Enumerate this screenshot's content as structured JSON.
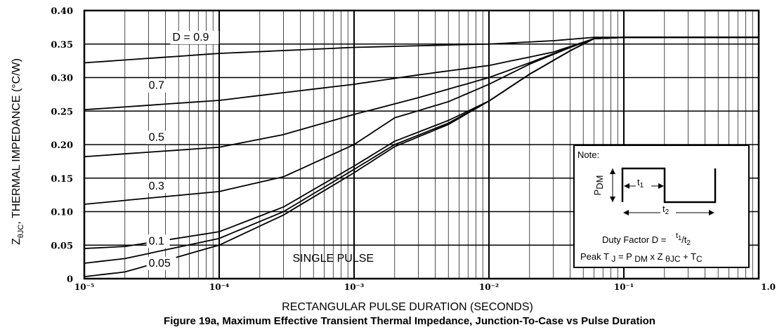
{
  "chart_data": {
    "type": "line",
    "caption": "Figure 19a, Maximum Effective Transient Thermal Impedance, Junction-To-Case vs Pulse Duration",
    "xlabel": "RECTANGULAR PULSE DURATION (SECONDS)",
    "ylabel": {
      "main": "Z",
      "sub": "θJC",
      "rest": ", THERMAL IMPEDANCE (°C/W)"
    },
    "x_scale": "log",
    "xlim": [
      1e-05,
      1.0
    ],
    "ylim": [
      0,
      0.4
    ],
    "grid": true,
    "x_ticks": [
      {
        "value": 1e-05,
        "label": "10⁻⁵"
      },
      {
        "value": 0.0001,
        "label": "10⁻⁴"
      },
      {
        "value": 0.001,
        "label": "10⁻³"
      },
      {
        "value": 0.01,
        "label": "10⁻²"
      },
      {
        "value": 0.1,
        "label": "10⁻¹"
      },
      {
        "value": 1.0,
        "label": "1.0"
      }
    ],
    "y_ticks": [
      {
        "value": 0.4,
        "label": "0.40"
      },
      {
        "value": 0.35,
        "label": "0.35"
      },
      {
        "value": 0.3,
        "label": "0.30"
      },
      {
        "value": 0.25,
        "label": "0.25"
      },
      {
        "value": 0.2,
        "label": "0.20"
      },
      {
        "value": 0.15,
        "label": "0.15"
      },
      {
        "value": 0.1,
        "label": "0.10"
      },
      {
        "value": 0.05,
        "label": "0.05"
      },
      {
        "value": 0,
        "label": "0"
      }
    ],
    "series": [
      {
        "name": "D = 0.9",
        "label_at": [
          4.5e-05,
          0.355
        ],
        "x": [
          1e-05,
          0.0001,
          0.001,
          0.01,
          0.03,
          0.06,
          0.1,
          1.0
        ],
        "y": [
          0.322,
          0.336,
          0.345,
          0.35,
          0.355,
          0.36,
          0.36,
          0.36
        ]
      },
      {
        "name": "0.7",
        "label_at": [
          3e-05,
          0.283
        ],
        "x": [
          1e-05,
          0.0001,
          0.001,
          0.003,
          0.01,
          0.03,
          0.06,
          0.1,
          1.0
        ],
        "y": [
          0.252,
          0.266,
          0.29,
          0.304,
          0.318,
          0.338,
          0.358,
          0.36,
          0.36
        ]
      },
      {
        "name": "0.5",
        "label_at": [
          3e-05,
          0.206
        ],
        "x": [
          1e-05,
          0.0001,
          0.0003,
          0.001,
          0.003,
          0.01,
          0.02,
          0.04,
          0.06,
          0.1,
          1.0
        ],
        "y": [
          0.182,
          0.196,
          0.215,
          0.245,
          0.27,
          0.3,
          0.322,
          0.345,
          0.358,
          0.36,
          0.36
        ]
      },
      {
        "name": "0.3",
        "label_at": [
          3e-05,
          0.133
        ],
        "x": [
          1e-05,
          0.0001,
          0.0003,
          0.001,
          0.002,
          0.005,
          0.01,
          0.02,
          0.04,
          0.06,
          0.1,
          1.0
        ],
        "y": [
          0.111,
          0.13,
          0.152,
          0.2,
          0.24,
          0.264,
          0.29,
          0.32,
          0.345,
          0.358,
          0.36,
          0.36
        ]
      },
      {
        "name": "0.1",
        "label_at": [
          3e-05,
          0.051
        ],
        "x": [
          1e-05,
          2e-05,
          0.0001,
          0.0003,
          0.001,
          0.002,
          0.005,
          0.01,
          0.02,
          0.04,
          0.06,
          0.1,
          1.0
        ],
        "y": [
          0.045,
          0.048,
          0.07,
          0.107,
          0.168,
          0.205,
          0.236,
          0.265,
          0.305,
          0.34,
          0.358,
          0.36,
          0.36
        ]
      },
      {
        "name": "0.05",
        "label_at": [
          3e-05,
          0.018
        ],
        "x": [
          1e-05,
          2e-05,
          0.0001,
          0.0003,
          0.001,
          0.002,
          0.005,
          0.01,
          0.02,
          0.04,
          0.06,
          0.1,
          1.0
        ],
        "y": [
          0.023,
          0.03,
          0.06,
          0.1,
          0.163,
          0.2,
          0.232,
          0.265,
          0.305,
          0.34,
          0.358,
          0.36,
          0.36
        ]
      },
      {
        "name": "SINGLE PULSE",
        "label_at": [
          0.00035,
          0.025
        ],
        "x": [
          1e-05,
          2e-05,
          0.0001,
          0.0003,
          0.001,
          0.002,
          0.005,
          0.01,
          0.02,
          0.04,
          0.06,
          0.1,
          1.0
        ],
        "y": [
          0.003,
          0.01,
          0.05,
          0.095,
          0.158,
          0.197,
          0.23,
          0.265,
          0.305,
          0.34,
          0.358,
          0.36,
          0.36
        ]
      }
    ]
  },
  "note": {
    "title": "Note:",
    "pdm_main": "P",
    "pdm_sub": "DM",
    "t1_main": "t",
    "t1_sub": "1",
    "t2_main": "t",
    "t2_sub": "2",
    "duty_text": "Duty Factor D = ",
    "duty_num": "t",
    "duty_num_sub": "1",
    "duty_sep": "/t",
    "duty_den_sub": "2",
    "peak_a": "Peak T ",
    "peak_b": "J",
    "peak_c": " = P ",
    "peak_d": "DM",
    "peak_e": " x Z ",
    "peak_f": "θJC",
    "peak_g": " + T",
    "peak_h": "C"
  }
}
